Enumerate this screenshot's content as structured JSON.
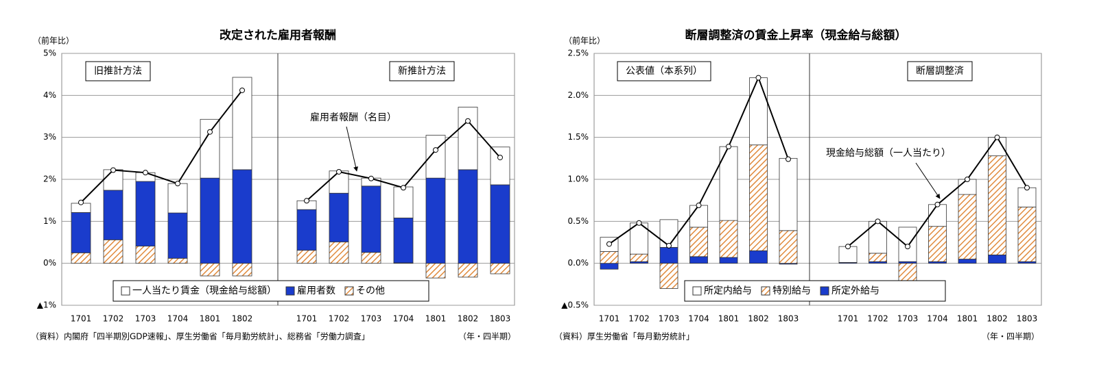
{
  "chart_data": [
    {
      "type": "bar",
      "title": "改定された雇用者報酬",
      "ylabel": "（前年比）",
      "ylim": [
        -1,
        5
      ],
      "yticks": [
        {
          "value": -1,
          "label": "▲1%"
        },
        {
          "value": 0,
          "label": "0%"
        },
        {
          "value": 1,
          "label": "1%"
        },
        {
          "value": 2,
          "label": "2%"
        },
        {
          "value": 3,
          "label": "3%"
        },
        {
          "value": 4,
          "label": "4%"
        },
        {
          "value": 5,
          "label": "5%"
        }
      ],
      "grid": true,
      "series": [
        {
          "name": "一人当たり賃金（現金給与総額）",
          "color": "#ffffff"
        },
        {
          "name": "雇用者数",
          "color": "#1a3ccc"
        },
        {
          "name": "その他",
          "color": "#e08a3c",
          "hatch": true
        }
      ],
      "line": {
        "name": "雇用者報酬（名目）",
        "color": "#000000"
      },
      "panels": [
        {
          "label": "旧推計方法",
          "categories": [
            "1701",
            "1702",
            "1703",
            "1704",
            "1801",
            "1802"
          ],
          "series": [
            {
              "values": [
                0.22,
                0.49,
                0.21,
                0.7,
                1.4,
                2.2
              ]
            },
            {
              "values": [
                0.96,
                1.18,
                1.54,
                1.08,
                2.03,
                2.23
              ]
            },
            {
              "values": [
                0.25,
                0.56,
                0.41,
                0.12,
                -0.3,
                -0.3
              ]
            }
          ],
          "line": {
            "values": [
              1.45,
              2.22,
              2.16,
              1.9,
              3.13,
              4.12
            ]
          }
        },
        {
          "label": "新推計方法",
          "categories": [
            "1701",
            "1702",
            "1703",
            "1704",
            "1801",
            "1802",
            "1803"
          ],
          "series": [
            {
              "values": [
                0.21,
                0.53,
                0.19,
                0.74,
                1.02,
                1.49,
                0.9
              ]
            },
            {
              "values": [
                0.97,
                1.16,
                1.58,
                1.07,
                2.03,
                2.23,
                1.87
              ]
            },
            {
              "values": [
                0.31,
                0.51,
                0.26,
                0.01,
                -0.35,
                -0.33,
                -0.25
              ]
            }
          ],
          "line": {
            "values": [
              1.49,
              2.18,
              2.02,
              1.8,
              2.7,
              3.39,
              2.52
            ]
          }
        }
      ],
      "source": "（資料）内閣府「四半期別GDP速報」、厚生労働省「毎月勤労統計」、総務省「労働力調査」",
      "xlabel": "（年・四半期）"
    },
    {
      "type": "bar",
      "title": "断層調整済の賃金上昇率（現金給与総額）",
      "ylabel": "（前年比）",
      "ylim": [
        -0.5,
        2.5
      ],
      "yticks": [
        {
          "value": -0.5,
          "label": "▲0.5%"
        },
        {
          "value": 0,
          "label": "0.0%"
        },
        {
          "value": 0.5,
          "label": "0.5%"
        },
        {
          "value": 1,
          "label": "1.0%"
        },
        {
          "value": 1.5,
          "label": "1.5%"
        },
        {
          "value": 2,
          "label": "2.0%"
        },
        {
          "value": 2.5,
          "label": "2.5%"
        }
      ],
      "grid": true,
      "series": [
        {
          "name": "所定内給与",
          "color": "#ffffff"
        },
        {
          "name": "特別給与",
          "color": "#e08a3c",
          "hatch": true
        },
        {
          "name": "所定外給与",
          "color": "#1a3ccc"
        }
      ],
      "line": {
        "name": "現金給与総額（一人当たり）",
        "color": "#000000"
      },
      "panels": [
        {
          "label": "公表値（本系列）",
          "categories": [
            "1701",
            "1702",
            "1703",
            "1704",
            "1801",
            "1802",
            "1803"
          ],
          "series": [
            {
              "values": [
                0.17,
                0.37,
                0.33,
                0.26,
                0.88,
                0.8,
                0.86
              ]
            },
            {
              "values": [
                0.14,
                0.09,
                -0.3,
                0.35,
                0.44,
                1.26,
                0.39
              ]
            },
            {
              "values": [
                -0.07,
                0.02,
                0.19,
                0.08,
                0.07,
                0.15,
                -0.01
              ]
            }
          ],
          "line": {
            "values": [
              0.23,
              0.48,
              0.21,
              0.69,
              1.39,
              2.21,
              1.24
            ]
          }
        },
        {
          "label": "断層調整済",
          "categories": [
            "1701",
            "1702",
            "1703",
            "1704",
            "1801",
            "1802",
            "1803"
          ],
          "series": [
            {
              "values": [
                0.19,
                0.38,
                0.41,
                0.26,
                0.18,
                0.22,
                0.23
              ]
            },
            {
              "values": [
                0.0,
                0.1,
                -0.22,
                0.42,
                0.77,
                1.18,
                0.65
              ]
            },
            {
              "values": [
                0.01,
                0.02,
                0.02,
                0.02,
                0.05,
                0.1,
                0.02
              ]
            }
          ],
          "line": {
            "values": [
              0.2,
              0.5,
              0.2,
              0.7,
              1.0,
              1.5,
              0.9
            ]
          }
        }
      ],
      "source": "（資料）厚生労働省「毎月勤労統計」",
      "xlabel": "（年・四半期）"
    }
  ]
}
